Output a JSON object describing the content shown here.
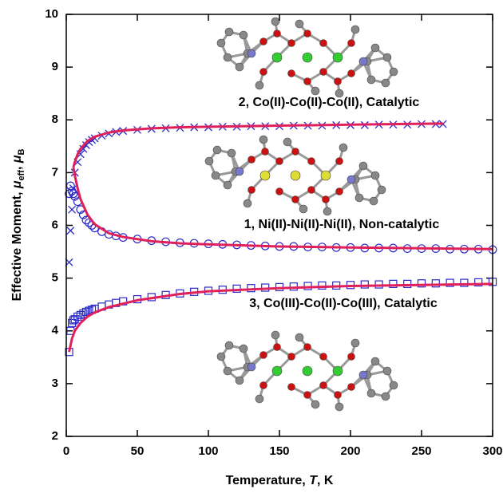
{
  "chart_data": {
    "type": "scatter",
    "xlabel": [
      "Temperature, ",
      "T",
      ", K"
    ],
    "ylabel": [
      "Effective Moment, ",
      "μ",
      "eff",
      ", ",
      "μ",
      "B"
    ],
    "xlim": [
      0,
      300
    ],
    "xticks": [
      0,
      50,
      100,
      150,
      200,
      250,
      300
    ],
    "ylim": [
      2,
      10
    ],
    "yticks": [
      2,
      3,
      4,
      5,
      6,
      7,
      8,
      9,
      10
    ],
    "annotations": [
      "2, Co(II)-Co(II)-Co(II), Catalytic",
      "1, Ni(II)-Ni(II)-Ni(II), Non-catalytic",
      "3, Co(III)-Co(II)-Co(III), Catalytic"
    ],
    "series": [
      {
        "marker": "cross",
        "color": "#2a2ac8",
        "x": [
          2,
          3,
          4,
          5,
          6,
          8,
          10,
          12,
          14,
          16,
          18,
          20,
          25,
          30,
          35,
          40,
          50,
          60,
          70,
          80,
          90,
          100,
          110,
          120,
          130,
          140,
          150,
          160,
          170,
          180,
          190,
          200,
          210,
          220,
          230,
          240,
          250,
          260,
          265
        ],
        "values": [
          5.3,
          5.9,
          6.3,
          6.7,
          7.0,
          7.2,
          7.35,
          7.45,
          7.52,
          7.58,
          7.62,
          7.65,
          7.7,
          7.74,
          7.77,
          7.79,
          7.81,
          7.83,
          7.84,
          7.85,
          7.86,
          7.86,
          7.87,
          7.87,
          7.88,
          7.88,
          7.88,
          7.89,
          7.89,
          7.89,
          7.9,
          7.9,
          7.9,
          7.91,
          7.91,
          7.91,
          7.92,
          7.92,
          7.92
        ]
      },
      {
        "marker": "circle",
        "color": "#2a2ac8",
        "x": [
          2,
          3,
          4,
          5,
          6,
          8,
          10,
          12,
          14,
          16,
          18,
          20,
          25,
          30,
          35,
          40,
          50,
          60,
          70,
          80,
          90,
          100,
          110,
          120,
          130,
          140,
          150,
          160,
          170,
          180,
          190,
          200,
          210,
          220,
          230,
          240,
          250,
          260,
          270,
          280,
          290,
          300
        ],
        "values": [
          6.6,
          6.75,
          6.65,
          6.6,
          6.55,
          6.45,
          6.3,
          6.2,
          6.1,
          6.05,
          6.0,
          5.95,
          5.88,
          5.83,
          5.8,
          5.77,
          5.74,
          5.71,
          5.69,
          5.67,
          5.66,
          5.65,
          5.64,
          5.63,
          5.62,
          5.61,
          5.6,
          5.6,
          5.59,
          5.59,
          5.58,
          5.58,
          5.57,
          5.57,
          5.57,
          5.56,
          5.56,
          5.56,
          5.55,
          5.55,
          5.55,
          5.54
        ]
      },
      {
        "marker": "square",
        "color": "#2a2ac8",
        "x": [
          2,
          3,
          4,
          5,
          6,
          8,
          10,
          12,
          14,
          16,
          18,
          20,
          25,
          30,
          35,
          40,
          50,
          60,
          70,
          80,
          90,
          100,
          110,
          120,
          130,
          140,
          150,
          160,
          170,
          180,
          190,
          200,
          210,
          220,
          230,
          240,
          250,
          260,
          270,
          280,
          290,
          300
        ],
        "values": [
          3.6,
          4.0,
          4.15,
          4.2,
          4.22,
          4.27,
          4.3,
          4.33,
          4.36,
          4.38,
          4.4,
          4.42,
          4.46,
          4.5,
          4.53,
          4.56,
          4.6,
          4.64,
          4.68,
          4.71,
          4.74,
          4.76,
          4.78,
          4.8,
          4.81,
          4.82,
          4.83,
          4.84,
          4.85,
          4.86,
          4.86,
          4.87,
          4.88,
          4.88,
          4.89,
          4.89,
          4.9,
          4.9,
          4.91,
          4.91,
          4.92,
          4.93
        ]
      },
      {
        "marker": "line",
        "color": "#e0205a",
        "x": [
          5,
          6,
          8,
          10,
          15,
          20,
          30,
          40,
          60,
          80,
          100,
          150,
          200,
          265
        ],
        "values": [
          7.1,
          7.2,
          7.35,
          7.45,
          7.6,
          7.68,
          7.76,
          7.8,
          7.84,
          7.86,
          7.87,
          7.89,
          7.91,
          7.93
        ]
      },
      {
        "marker": "line",
        "color": "#e0205a",
        "x": [
          5,
          6,
          8,
          10,
          15,
          20,
          30,
          40,
          60,
          80,
          100,
          150,
          200,
          300
        ],
        "values": [
          7.1,
          6.95,
          6.7,
          6.5,
          6.2,
          6.02,
          5.85,
          5.78,
          5.7,
          5.66,
          5.64,
          5.6,
          5.58,
          5.55
        ]
      },
      {
        "marker": "line",
        "color": "#e0205a",
        "x": [
          2,
          4,
          6,
          10,
          15,
          20,
          30,
          50,
          80,
          100,
          150,
          200,
          300
        ],
        "values": [
          3.6,
          3.85,
          4.0,
          4.15,
          4.27,
          4.35,
          4.45,
          4.58,
          4.7,
          4.75,
          4.81,
          4.85,
          4.89
        ]
      }
    ]
  }
}
